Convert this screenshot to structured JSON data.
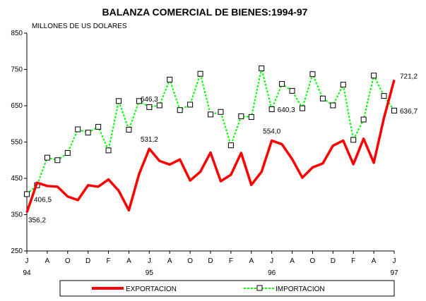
{
  "chart_data": {
    "type": "line",
    "title": "BALANZA COMERCIAL DE BIENES:1994-97",
    "unit_label": "MILLONES DE US DOLARES",
    "ylim": [
      250,
      850
    ],
    "y_ticks": [
      "250",
      "350",
      "450",
      "550",
      "650",
      "750",
      "850"
    ],
    "grid": false,
    "legend_position": "bottom",
    "x_month_labels": [
      "J",
      "A",
      "O",
      "D",
      "F",
      "A",
      "J",
      "A",
      "O",
      "D",
      "F",
      "A",
      "J",
      "A",
      "O",
      "D",
      "F",
      "A",
      "J"
    ],
    "x_year_labels": [
      "94",
      "95",
      "96",
      "97"
    ],
    "series": [
      {
        "name": "EXPORTACION",
        "color": "#ff0000",
        "marker": "none",
        "values": [
          356.2,
          438,
          429,
          427,
          400,
          390,
          431,
          427,
          447,
          416,
          362,
          462,
          531.2,
          498,
          488,
          502,
          444,
          468,
          521,
          442,
          460,
          520,
          432,
          468,
          554.0,
          544,
          503,
          452,
          480,
          491,
          540,
          554,
          489,
          559,
          493,
          617,
          721.2
        ]
      },
      {
        "name": "IMPORTACION",
        "color": "#00ff00",
        "marker": "square",
        "values": [
          406.5,
          431,
          507,
          500,
          520,
          585,
          576,
          592,
          527,
          663,
          584,
          663,
          646.3,
          651,
          722,
          638,
          653,
          738,
          626,
          633,
          541,
          621,
          619,
          753,
          640.3,
          710,
          691,
          643,
          737,
          670,
          651,
          708,
          556,
          612,
          733,
          677,
          636.7
        ]
      }
    ],
    "annotations": [
      {
        "text": "356,2",
        "series": 0,
        "index": 0
      },
      {
        "text": "531,2",
        "series": 0,
        "index": 12
      },
      {
        "text": "554,0",
        "series": 0,
        "index": 24
      },
      {
        "text": "721,2",
        "series": 0,
        "index": 36
      },
      {
        "text": "406,5",
        "series": 1,
        "index": 0
      },
      {
        "text": "646,3",
        "series": 1,
        "index": 12
      },
      {
        "text": "640,3",
        "series": 1,
        "index": 24
      },
      {
        "text": "636,7",
        "series": 1,
        "index": 36
      }
    ]
  }
}
